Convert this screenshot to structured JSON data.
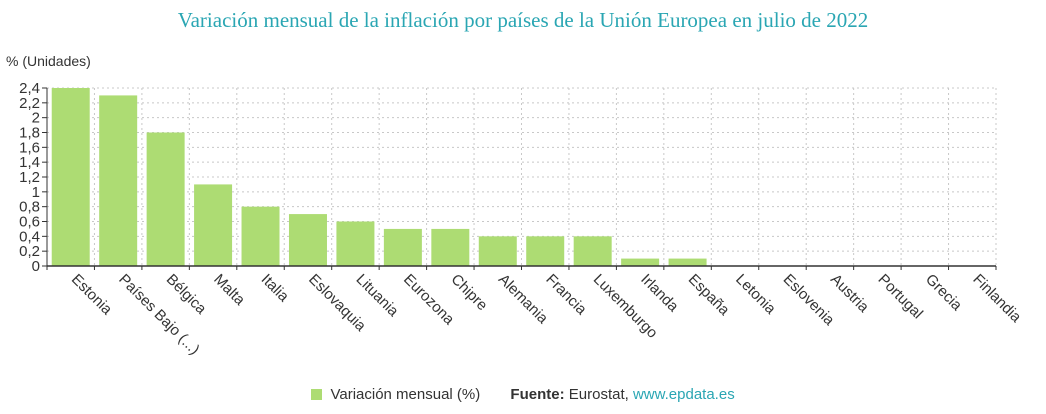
{
  "colors": {
    "bar": "#addc73",
    "title": "#2aa6b3",
    "grid": "#c8c8c8",
    "axis": "#333333",
    "link": "#2aa6b3"
  },
  "chart_data": {
    "type": "bar",
    "title": "Variación mensual de la inflación por países de la Unión Europea en julio de 2022",
    "ylabel": "% (Unidades)",
    "xlabel": "",
    "ylim": [
      0,
      2.4
    ],
    "yticks": [
      0,
      0.2,
      0.4,
      0.6,
      0.8,
      1,
      1.2,
      1.4,
      1.6,
      1.8,
      2,
      2.2,
      2.4
    ],
    "ytick_labels": [
      "0",
      "0,2",
      "0,4",
      "0,6",
      "0,8",
      "1",
      "1,2",
      "1,4",
      "1,6",
      "1,8",
      "2",
      "2,2",
      "2,4"
    ],
    "grid": true,
    "categories": [
      "Estonia",
      "Países Bajo (...)",
      "Bélgica",
      "Malta",
      "Italia",
      "Eslovaquia",
      "Lituania",
      "Eurozona",
      "Chipre",
      "Alemania",
      "Francia",
      "Luxemburgo",
      "Irlanda",
      "España",
      "Letonia",
      "Eslovenia",
      "Austria",
      "Portugal",
      "Grecia",
      "Finlandia"
    ],
    "series": [
      {
        "name": "Variación mensual (%)",
        "values": [
          2.4,
          2.3,
          1.8,
          1.1,
          0.8,
          0.7,
          0.6,
          0.5,
          0.5,
          0.4,
          0.4,
          0.4,
          0.1,
          0.1,
          0,
          0,
          0,
          0,
          0,
          0
        ]
      }
    ],
    "legend": "bottom-center"
  },
  "source": {
    "label": "Fuente:",
    "name": "Eurostat,",
    "link_text": "www.epdata.es"
  }
}
